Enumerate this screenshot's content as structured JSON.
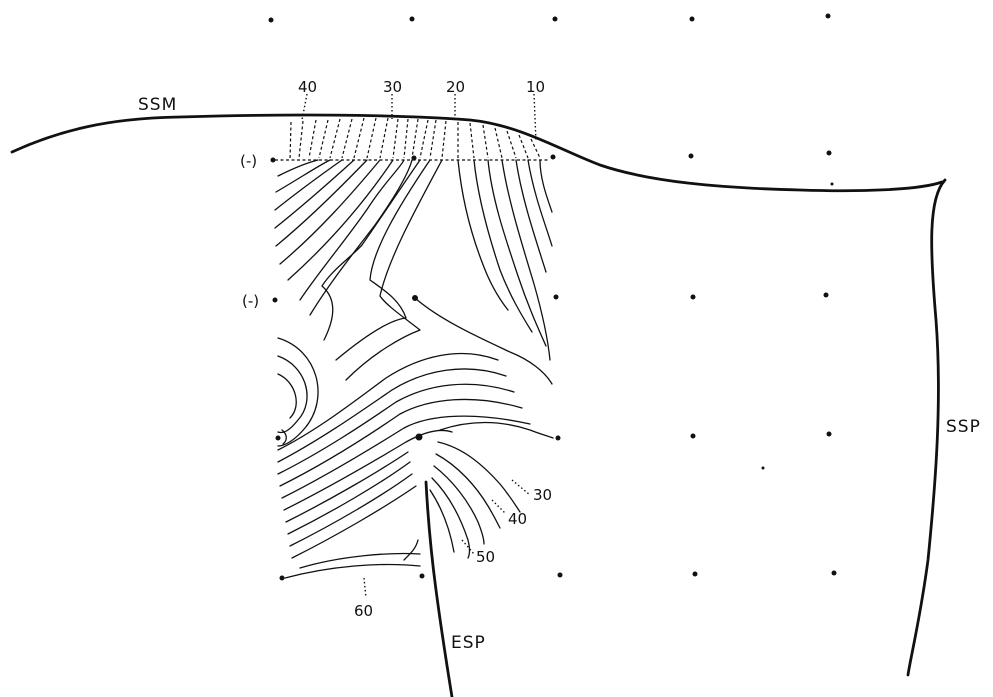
{
  "labels": {
    "top_boundary": "SSM",
    "right_boundary": "SSP",
    "bottom_boundary": "ESP"
  },
  "contour_values": {
    "top": [
      "40",
      "30",
      "20",
      "10"
    ],
    "right": [
      "30",
      "40",
      "50"
    ],
    "bottom": [
      "60"
    ]
  },
  "markers": {
    "neg_upper": "(-)",
    "neg_lower": "(-)"
  }
}
